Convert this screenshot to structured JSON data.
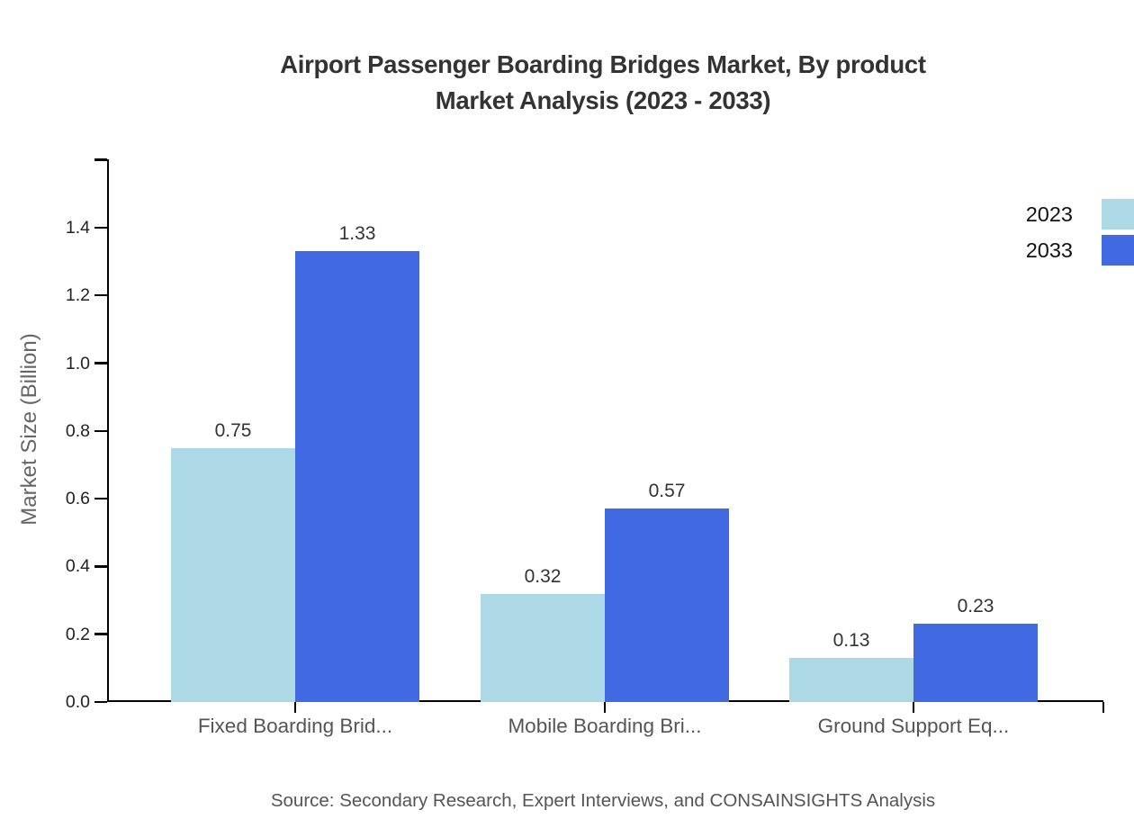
{
  "title": {
    "line1": "Airport Passenger Boarding Bridges Market, By product",
    "line2": "Market Analysis (2023 - 2033)"
  },
  "y_axis": {
    "label": "Market Size (Billion)",
    "ticks": [
      "0.0",
      "0.2",
      "0.4",
      "0.6",
      "0.8",
      "1.0",
      "1.2",
      "1.4"
    ]
  },
  "legend": [
    {
      "label": "2023",
      "color": "#ADD8E6"
    },
    {
      "label": "2033",
      "color": "#4169E1"
    }
  ],
  "source": "Source: Secondary Research, Expert Interviews, and CONSAINSIGHTS Analysis",
  "colors": {
    "series_2023": "#ADD8E6",
    "series_2033": "#4169E1",
    "axis": "#000000",
    "title_text": "#333333",
    "muted_text": "#555555"
  },
  "chart_data": {
    "type": "bar",
    "title": "Airport Passenger Boarding Bridges Market, By product Market Analysis (2023 - 2033)",
    "categories": [
      "Fixed Boarding Brid...",
      "Mobile Boarding Bri...",
      "Ground Support Eq..."
    ],
    "series": [
      {
        "name": "2023",
        "color": "#ADD8E6",
        "values": [
          0.75,
          0.32,
          0.13
        ]
      },
      {
        "name": "2033",
        "color": "#4169E1",
        "values": [
          1.33,
          0.57,
          0.23
        ]
      }
    ],
    "xlabel": "",
    "ylabel": "Market Size (Billion)",
    "ylim": [
      0,
      1.6
    ],
    "ytick_step": 0.2,
    "grid": false,
    "legend_position": "top-right",
    "value_labels": true
  }
}
